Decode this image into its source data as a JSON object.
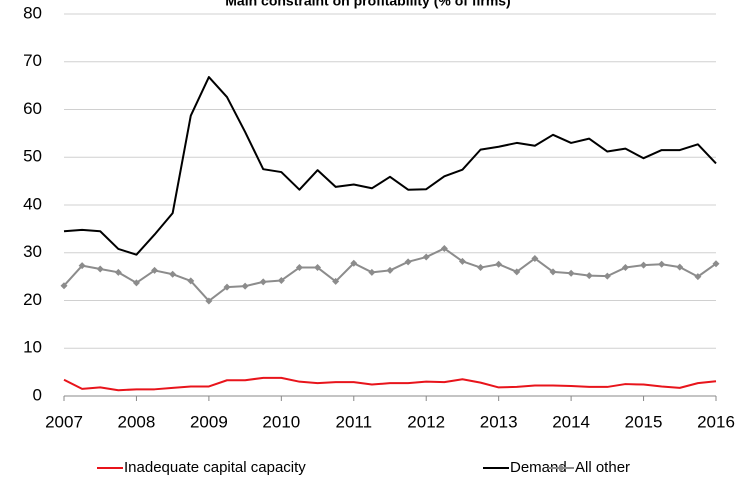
{
  "chart_data": {
    "type": "line",
    "title": "Main constraint on profitability (% of firms)",
    "x": [
      2007,
      2007.25,
      2007.5,
      2007.75,
      2008,
      2008.25,
      2008.5,
      2008.75,
      2009,
      2009.25,
      2009.5,
      2009.75,
      2010,
      2010.25,
      2010.5,
      2010.75,
      2011,
      2011.25,
      2011.5,
      2011.75,
      2012,
      2012.25,
      2012.5,
      2012.75,
      2013,
      2013.25,
      2013.5,
      2013.75,
      2014,
      2014.25,
      2014.5,
      2014.75,
      2015,
      2015.25,
      2015.5,
      2015.75,
      2016
    ],
    "series": [
      {
        "name": "Inadequate capital capacity",
        "color": "#e8141b",
        "values": [
          3.4,
          1.5,
          1.8,
          1.2,
          1.4,
          1.4,
          1.7,
          2.0,
          2.0,
          3.3,
          3.3,
          3.8,
          3.8,
          3.0,
          2.7,
          2.9,
          2.9,
          2.4,
          2.7,
          2.7,
          3.0,
          2.9,
          3.5,
          2.8,
          1.8,
          1.9,
          2.2,
          2.2,
          2.1,
          1.9,
          1.9,
          2.5,
          2.4,
          2.0,
          1.7,
          2.7,
          3.1
        ]
      },
      {
        "name": "Demand",
        "color": "#000000",
        "values": [
          34.5,
          34.8,
          34.5,
          30.8,
          29.6,
          33.8,
          38.3,
          58.7,
          66.8,
          62.6,
          55.3,
          47.5,
          46.9,
          43.2,
          47.3,
          43.8,
          44.3,
          43.5,
          45.9,
          43.2,
          43.3,
          46.0,
          47.4,
          51.6,
          52.2,
          53.0,
          52.4,
          54.7,
          53.0,
          53.9,
          51.2,
          51.8,
          49.8,
          51.5,
          51.5,
          52.7,
          48.7
        ]
      },
      {
        "name": "All other",
        "color": "#8c8c8c",
        "marker": "diamond",
        "values": [
          23.1,
          27.3,
          26.6,
          25.9,
          23.7,
          26.3,
          25.5,
          24.1,
          19.9,
          22.8,
          23.0,
          23.9,
          24.2,
          26.9,
          26.9,
          24.0,
          27.8,
          25.9,
          26.3,
          28.1,
          29.1,
          30.9,
          28.2,
          26.9,
          27.6,
          26.0,
          28.8,
          26.0,
          25.7,
          25.2,
          25.1,
          26.9,
          27.4,
          27.6,
          27.0,
          25.0,
          27.7
        ]
      }
    ],
    "xlim": [
      2007,
      2016
    ],
    "xticks": [
      2007,
      2008,
      2009,
      2010,
      2011,
      2012,
      2013,
      2014,
      2015,
      2016
    ],
    "ylim": [
      0,
      80
    ],
    "yticks": [
      0,
      10,
      20,
      30,
      40,
      50,
      60,
      70,
      80
    ],
    "grid": true,
    "legend": "bottom"
  }
}
